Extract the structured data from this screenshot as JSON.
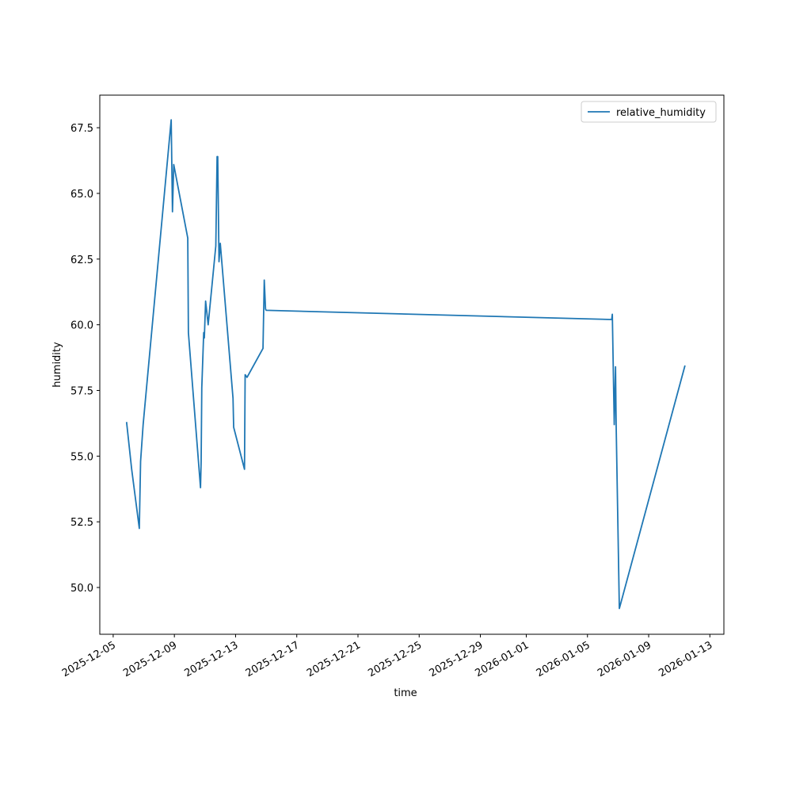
{
  "chart_data": {
    "type": "line",
    "x_label": "time",
    "y_label": "humidity",
    "x": [
      "2025-12-05T21:00",
      "2025-12-06T05:00",
      "2025-12-06T17:00",
      "2025-12-06T19:00",
      "2025-12-06T23:00",
      "2025-12-08T19:00",
      "2025-12-08T21:00",
      "2025-12-08T23:00",
      "2025-12-09T21:00",
      "2025-12-09T22:00",
      "2025-12-10T17:00",
      "2025-12-10T18:00",
      "2025-12-10T19:00",
      "2025-12-10T22:00",
      "2025-12-10T23:00",
      "2025-12-11T01:00",
      "2025-12-11T05:00",
      "2025-12-11T17:00",
      "2025-12-11T19:00",
      "2025-12-11T20:00",
      "2025-12-11T22:00",
      "2025-12-12T00:00",
      "2025-12-12T20:00",
      "2025-12-12T21:00",
      "2025-12-13T14:00",
      "2025-12-13T15:00",
      "2025-12-13T18:00",
      "2025-12-14T19:00",
      "2025-12-14T21:00",
      "2025-12-14T23:00",
      "2025-12-15T00:00",
      "2026-01-06T14:00",
      "2026-01-06T15:00",
      "2026-01-06T18:00",
      "2026-01-06T20:00",
      "2026-01-06T21:00",
      "2026-01-07T02:00",
      "2026-01-11T09:00"
    ],
    "series": [
      {
        "name": "relative_humidity",
        "color": "#1f77b4",
        "values": [
          56.3,
          54.5,
          52.25,
          54.8,
          56.2,
          67.8,
          64.3,
          66.1,
          63.3,
          59.7,
          53.8,
          54.8,
          57.6,
          59.7,
          59.5,
          60.9,
          60.0,
          63.0,
          66.4,
          66.4,
          62.4,
          63.1,
          57.2,
          56.1,
          54.5,
          58.1,
          58.0,
          59.1,
          61.7,
          60.6,
          60.55,
          60.2,
          60.4,
          56.2,
          58.4,
          56.2,
          49.2,
          58.45
        ]
      }
    ],
    "xlim": [
      "2025-12-04T03:00",
      "2026-01-13T22:00"
    ],
    "xticks": [
      "2025-12-05",
      "2025-12-09",
      "2025-12-13",
      "2025-12-17",
      "2025-12-21",
      "2025-12-25",
      "2025-12-29",
      "2026-01-01",
      "2026-01-05",
      "2026-01-09",
      "2026-01-13"
    ],
    "ylim": [
      48.22,
      68.74
    ],
    "yticks": [
      {
        "value": 50,
        "label": "50.0"
      },
      52.5,
      {
        "value": 55,
        "label": "55.0"
      },
      57.5,
      {
        "value": 60,
        "label": "60.0"
      },
      62.5,
      {
        "value": 65,
        "label": "65.0"
      },
      67.5
    ],
    "legend": "upper right"
  }
}
